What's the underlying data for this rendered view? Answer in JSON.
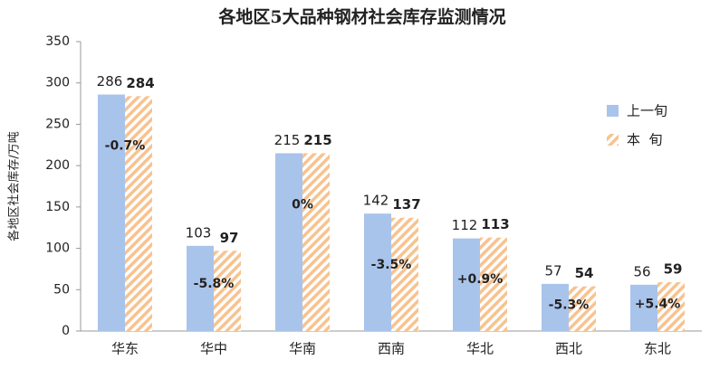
{
  "chart_data": {
    "type": "bar",
    "title": "各地区5大品种钢材社会库存监测情况",
    "y_label": "各地区社会库存/万吨",
    "categories": [
      "华东",
      "华中",
      "华南",
      "西南",
      "华北",
      "西北",
      "东北"
    ],
    "series": [
      {
        "name": "上一旬",
        "color": "#a9c4eb",
        "pattern": "solid",
        "values": [
          286,
          103,
          215,
          142,
          112,
          57,
          56
        ]
      },
      {
        "name": "本  旬",
        "color": "#f8c28f",
        "pattern": "hatch",
        "values": [
          284,
          97,
          215,
          137,
          113,
          54,
          59
        ]
      }
    ],
    "annotations": [
      "-0.7%",
      "-5.8%",
      "0%",
      "-3.5%",
      "+0.9%",
      "-5.3%",
      "+5.4%"
    ],
    "ylim": [
      0,
      350
    ],
    "yticks": [
      0,
      50,
      100,
      150,
      200,
      250,
      300,
      350
    ],
    "grid": false,
    "legend": "right"
  }
}
